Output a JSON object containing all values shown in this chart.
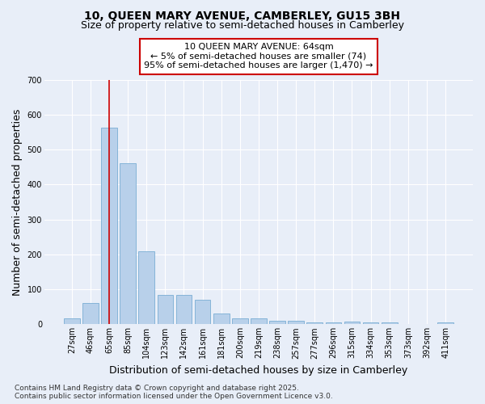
{
  "title_line1": "10, QUEEN MARY AVENUE, CAMBERLEY, GU15 3BH",
  "title_line2": "Size of property relative to semi-detached houses in Camberley",
  "xlabel": "Distribution of semi-detached houses by size in Camberley",
  "ylabel": "Number of semi-detached properties",
  "categories": [
    "27sqm",
    "46sqm",
    "65sqm",
    "85sqm",
    "104sqm",
    "123sqm",
    "142sqm",
    "161sqm",
    "181sqm",
    "200sqm",
    "219sqm",
    "238sqm",
    "257sqm",
    "277sqm",
    "296sqm",
    "315sqm",
    "334sqm",
    "353sqm",
    "373sqm",
    "392sqm",
    "411sqm"
  ],
  "values": [
    17,
    62,
    562,
    460,
    210,
    84,
    84,
    70,
    32,
    16,
    16,
    10,
    10,
    5,
    5,
    8,
    5,
    5,
    2,
    2,
    5
  ],
  "bar_color": "#b8d0ea",
  "bar_edge_color": "#7aadd4",
  "highlight_index": 2,
  "highlight_color": "#cc0000",
  "annotation_line1": "10 QUEEN MARY AVENUE: 64sqm",
  "annotation_line2": "← 5% of semi-detached houses are smaller (74)",
  "annotation_line3": "95% of semi-detached houses are larger (1,470) →",
  "annotation_box_color": "#ffffff",
  "annotation_box_edge_color": "#cc0000",
  "ylim": [
    0,
    700
  ],
  "yticks": [
    0,
    100,
    200,
    300,
    400,
    500,
    600,
    700
  ],
  "background_color": "#e8eef8",
  "grid_color": "#ffffff",
  "footer_line1": "Contains HM Land Registry data © Crown copyright and database right 2025.",
  "footer_line2": "Contains public sector information licensed under the Open Government Licence v3.0.",
  "title_fontsize": 10,
  "subtitle_fontsize": 9,
  "axis_label_fontsize": 9,
  "tick_fontsize": 7,
  "annotation_fontsize": 8,
  "footer_fontsize": 6.5
}
